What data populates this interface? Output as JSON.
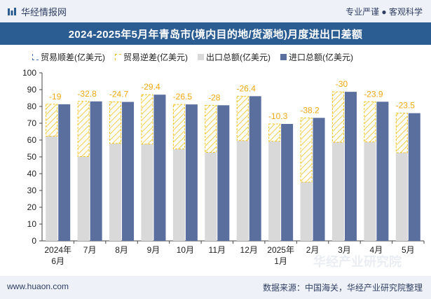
{
  "header": {
    "brand": "华经情报网",
    "right_text": "专业严谨 ● 客观科学",
    "logo_icon": "huajing-logo-icon"
  },
  "footer": {
    "left": "www.huaon.com",
    "right": "数据来源：中国海关，华经产业研究院整理"
  },
  "watermark": "华经产业研究院",
  "colors": {
    "export": "#d9d9d9",
    "import": "#5b6f9f",
    "deficit": "#f1c21c",
    "surplus": "#4a76b8",
    "titlebar": "#2b5c92",
    "label": "#f1a80f"
  },
  "chart_data": {
    "type": "bar",
    "title": "2024-2025年5月年青岛市(境内目的地/货源地)月度进出口差额",
    "legend": [
      "贸易顺差(亿美元)",
      "贸易逆差(亿美元)",
      "出口总额(亿美元)",
      "进口总额(亿美元)"
    ],
    "categories": [
      "2024年6月",
      "7月",
      "8月",
      "9月",
      "10月",
      "11月",
      "12月",
      "2025年1月",
      "2月",
      "3月",
      "4月",
      "5月"
    ],
    "ylim": [
      0,
      100
    ],
    "yticks": [
      0,
      10,
      20,
      30,
      40,
      50,
      60,
      70,
      80,
      90,
      100
    ],
    "grid": false,
    "series": [
      {
        "name": "出口总额(亿美元)",
        "values": [
          62.3,
          50.2,
          58.0,
          57.6,
          54.7,
          52.7,
          59.7,
          59.3,
          35.0,
          58.7,
          58.9,
          52.5
        ]
      },
      {
        "name": "进口总额(亿美元)",
        "values": [
          81.3,
          83.0,
          82.7,
          87.0,
          81.2,
          80.7,
          86.1,
          69.6,
          73.2,
          88.7,
          82.8,
          76.0
        ]
      }
    ],
    "balance": [
      -19,
      -32.8,
      -24.7,
      -29.4,
      -26.5,
      -28,
      -26.4,
      -10.3,
      -38.2,
      -30,
      -23.9,
      -23.5
    ],
    "balance_labels": [
      "-19",
      "-32.8",
      "-24.7",
      "-29.4",
      "-26.5",
      "-28",
      "-26.4",
      "-10.3",
      "-38.2",
      "-30",
      "-23.9",
      "-23.5"
    ]
  }
}
